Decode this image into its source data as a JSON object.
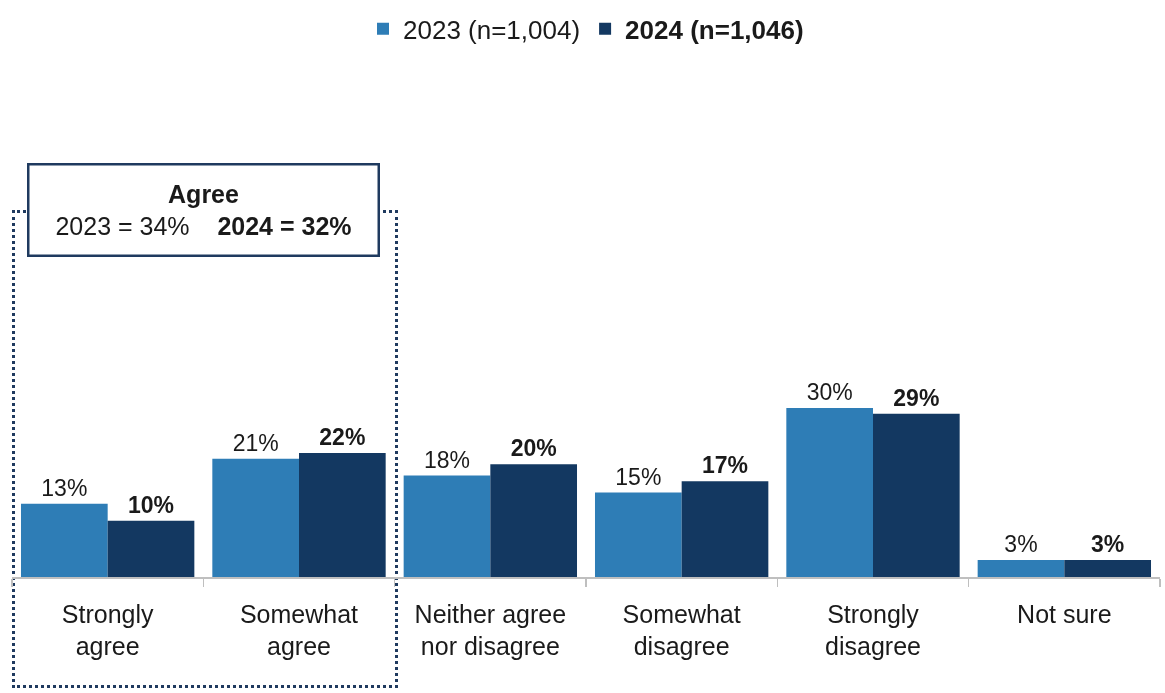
{
  "chart_data": {
    "type": "bar",
    "categories": [
      "Strongly agree",
      "Somewhat agree",
      "Neither agree nor disagree",
      "Somewhat disagree",
      "Strongly disagree",
      "Not sure"
    ],
    "series": [
      {
        "name": "2023 (n=1,004)",
        "color": "#2e7db6",
        "values": [
          13,
          21,
          18,
          15,
          30,
          3
        ],
        "value_labels": [
          "13%",
          "21%",
          "18%",
          "15%",
          "30%",
          "3%"
        ]
      },
      {
        "name": "2024 (n=1,046)",
        "color": "#133861",
        "values": [
          10,
          22,
          20,
          17,
          29,
          3
        ],
        "value_labels": [
          "10%",
          "22%",
          "20%",
          "17%",
          "29%",
          "3%"
        ]
      }
    ],
    "legend": "top",
    "annotations": [
      "Agree",
      "2023 = 34%",
      "2024 = 32%"
    ]
  }
}
